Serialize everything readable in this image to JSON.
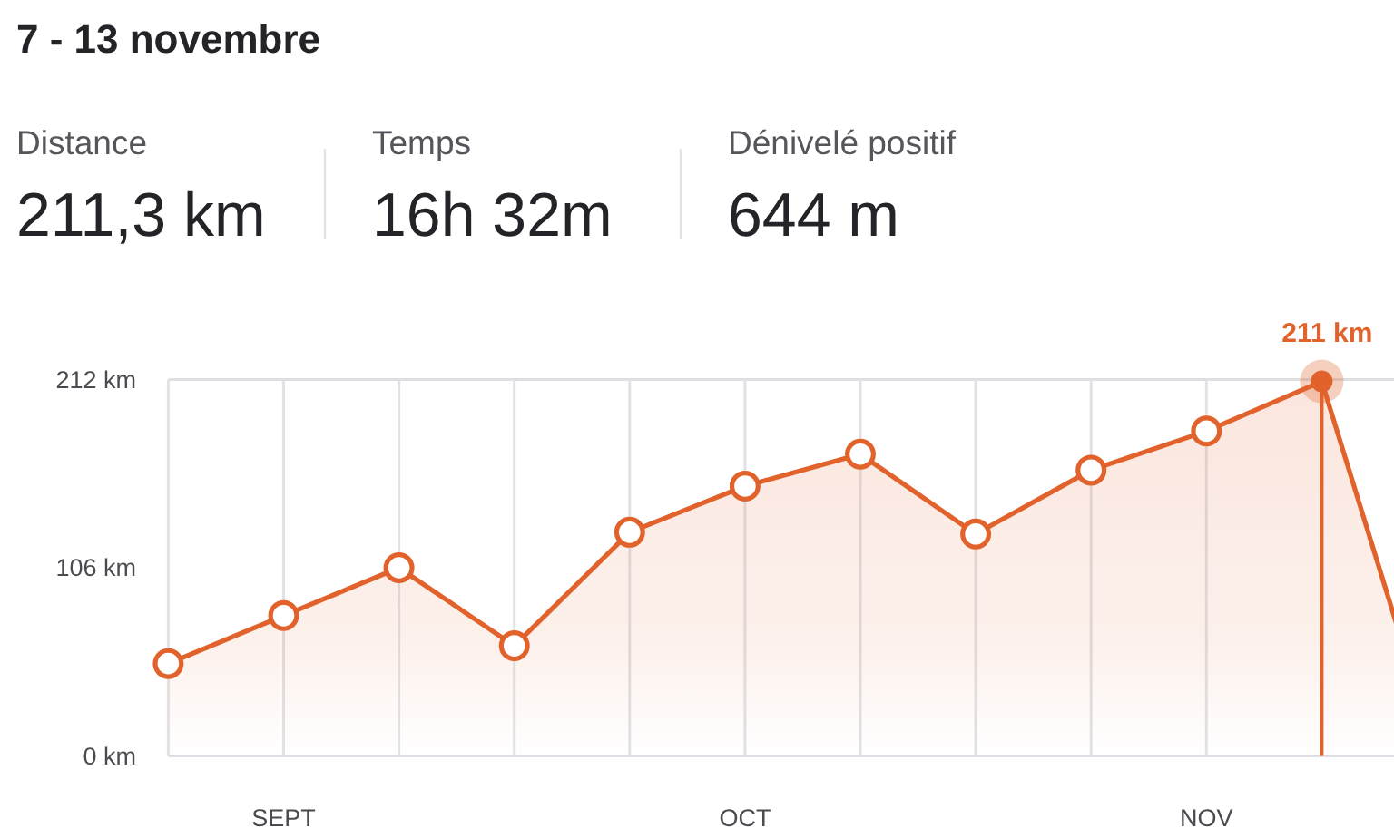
{
  "chart_data": {
    "type": "area",
    "title": "7 - 13 novembre",
    "annotations": [
      "Distance",
      "211,3 km",
      "Temps",
      "16h 32m",
      "Dénivelé positif",
      "644 m"
    ],
    "categories": [
      null,
      "SEPT",
      null,
      null,
      null,
      "OCT",
      null,
      null,
      null,
      "NOV",
      null,
      null
    ],
    "values": [
      52,
      79,
      106,
      62,
      126,
      152,
      170,
      125,
      161,
      183,
      211,
      0
    ],
    "value_labels": [
      null,
      null,
      null,
      null,
      null,
      null,
      null,
      null,
      null,
      null,
      "211 km",
      null
    ],
    "color": "#e2622c",
    "ylim": [
      0,
      212
    ],
    "yticks": [
      {
        "value": 0,
        "label": "0 km"
      },
      {
        "value": 106,
        "label": "106 km"
      },
      {
        "value": 212,
        "label": "212 km"
      }
    ],
    "grid": "x",
    "marker": "circle",
    "line_style": "solid"
  }
}
